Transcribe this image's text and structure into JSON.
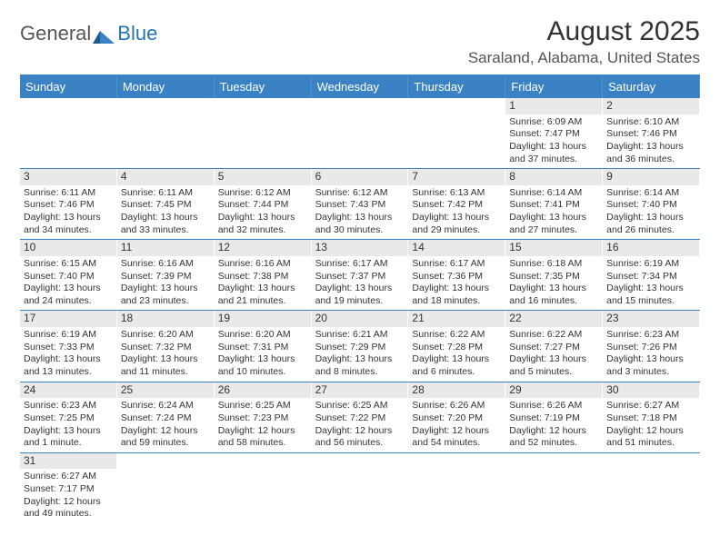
{
  "logo": {
    "word1": "General",
    "word2": "Blue"
  },
  "title": "August 2025",
  "location": "Saraland, Alabama, United States",
  "colors": {
    "header_bg": "#3b82c4",
    "header_text": "#ffffff",
    "daynum_bg": "#e9e9e9",
    "rule": "#3b82c4",
    "text": "#333333"
  },
  "fonts": {
    "title_size_pt": 22,
    "location_size_pt": 13,
    "dayheader_size_pt": 10,
    "body_size_pt": 8
  },
  "day_names": [
    "Sunday",
    "Monday",
    "Tuesday",
    "Wednesday",
    "Thursday",
    "Friday",
    "Saturday"
  ],
  "weeks": [
    [
      null,
      null,
      null,
      null,
      null,
      {
        "n": "1",
        "sunrise": "Sunrise: 6:09 AM",
        "sunset": "Sunset: 7:47 PM",
        "daylight": "Daylight: 13 hours and 37 minutes."
      },
      {
        "n": "2",
        "sunrise": "Sunrise: 6:10 AM",
        "sunset": "Sunset: 7:46 PM",
        "daylight": "Daylight: 13 hours and 36 minutes."
      }
    ],
    [
      {
        "n": "3",
        "sunrise": "Sunrise: 6:11 AM",
        "sunset": "Sunset: 7:46 PM",
        "daylight": "Daylight: 13 hours and 34 minutes."
      },
      {
        "n": "4",
        "sunrise": "Sunrise: 6:11 AM",
        "sunset": "Sunset: 7:45 PM",
        "daylight": "Daylight: 13 hours and 33 minutes."
      },
      {
        "n": "5",
        "sunrise": "Sunrise: 6:12 AM",
        "sunset": "Sunset: 7:44 PM",
        "daylight": "Daylight: 13 hours and 32 minutes."
      },
      {
        "n": "6",
        "sunrise": "Sunrise: 6:12 AM",
        "sunset": "Sunset: 7:43 PM",
        "daylight": "Daylight: 13 hours and 30 minutes."
      },
      {
        "n": "7",
        "sunrise": "Sunrise: 6:13 AM",
        "sunset": "Sunset: 7:42 PM",
        "daylight": "Daylight: 13 hours and 29 minutes."
      },
      {
        "n": "8",
        "sunrise": "Sunrise: 6:14 AM",
        "sunset": "Sunset: 7:41 PM",
        "daylight": "Daylight: 13 hours and 27 minutes."
      },
      {
        "n": "9",
        "sunrise": "Sunrise: 6:14 AM",
        "sunset": "Sunset: 7:40 PM",
        "daylight": "Daylight: 13 hours and 26 minutes."
      }
    ],
    [
      {
        "n": "10",
        "sunrise": "Sunrise: 6:15 AM",
        "sunset": "Sunset: 7:40 PM",
        "daylight": "Daylight: 13 hours and 24 minutes."
      },
      {
        "n": "11",
        "sunrise": "Sunrise: 6:16 AM",
        "sunset": "Sunset: 7:39 PM",
        "daylight": "Daylight: 13 hours and 23 minutes."
      },
      {
        "n": "12",
        "sunrise": "Sunrise: 6:16 AM",
        "sunset": "Sunset: 7:38 PM",
        "daylight": "Daylight: 13 hours and 21 minutes."
      },
      {
        "n": "13",
        "sunrise": "Sunrise: 6:17 AM",
        "sunset": "Sunset: 7:37 PM",
        "daylight": "Daylight: 13 hours and 19 minutes."
      },
      {
        "n": "14",
        "sunrise": "Sunrise: 6:17 AM",
        "sunset": "Sunset: 7:36 PM",
        "daylight": "Daylight: 13 hours and 18 minutes."
      },
      {
        "n": "15",
        "sunrise": "Sunrise: 6:18 AM",
        "sunset": "Sunset: 7:35 PM",
        "daylight": "Daylight: 13 hours and 16 minutes."
      },
      {
        "n": "16",
        "sunrise": "Sunrise: 6:19 AM",
        "sunset": "Sunset: 7:34 PM",
        "daylight": "Daylight: 13 hours and 15 minutes."
      }
    ],
    [
      {
        "n": "17",
        "sunrise": "Sunrise: 6:19 AM",
        "sunset": "Sunset: 7:33 PM",
        "daylight": "Daylight: 13 hours and 13 minutes."
      },
      {
        "n": "18",
        "sunrise": "Sunrise: 6:20 AM",
        "sunset": "Sunset: 7:32 PM",
        "daylight": "Daylight: 13 hours and 11 minutes."
      },
      {
        "n": "19",
        "sunrise": "Sunrise: 6:20 AM",
        "sunset": "Sunset: 7:31 PM",
        "daylight": "Daylight: 13 hours and 10 minutes."
      },
      {
        "n": "20",
        "sunrise": "Sunrise: 6:21 AM",
        "sunset": "Sunset: 7:29 PM",
        "daylight": "Daylight: 13 hours and 8 minutes."
      },
      {
        "n": "21",
        "sunrise": "Sunrise: 6:22 AM",
        "sunset": "Sunset: 7:28 PM",
        "daylight": "Daylight: 13 hours and 6 minutes."
      },
      {
        "n": "22",
        "sunrise": "Sunrise: 6:22 AM",
        "sunset": "Sunset: 7:27 PM",
        "daylight": "Daylight: 13 hours and 5 minutes."
      },
      {
        "n": "23",
        "sunrise": "Sunrise: 6:23 AM",
        "sunset": "Sunset: 7:26 PM",
        "daylight": "Daylight: 13 hours and 3 minutes."
      }
    ],
    [
      {
        "n": "24",
        "sunrise": "Sunrise: 6:23 AM",
        "sunset": "Sunset: 7:25 PM",
        "daylight": "Daylight: 13 hours and 1 minute."
      },
      {
        "n": "25",
        "sunrise": "Sunrise: 6:24 AM",
        "sunset": "Sunset: 7:24 PM",
        "daylight": "Daylight: 12 hours and 59 minutes."
      },
      {
        "n": "26",
        "sunrise": "Sunrise: 6:25 AM",
        "sunset": "Sunset: 7:23 PM",
        "daylight": "Daylight: 12 hours and 58 minutes."
      },
      {
        "n": "27",
        "sunrise": "Sunrise: 6:25 AM",
        "sunset": "Sunset: 7:22 PM",
        "daylight": "Daylight: 12 hours and 56 minutes."
      },
      {
        "n": "28",
        "sunrise": "Sunrise: 6:26 AM",
        "sunset": "Sunset: 7:20 PM",
        "daylight": "Daylight: 12 hours and 54 minutes."
      },
      {
        "n": "29",
        "sunrise": "Sunrise: 6:26 AM",
        "sunset": "Sunset: 7:19 PM",
        "daylight": "Daylight: 12 hours and 52 minutes."
      },
      {
        "n": "30",
        "sunrise": "Sunrise: 6:27 AM",
        "sunset": "Sunset: 7:18 PM",
        "daylight": "Daylight: 12 hours and 51 minutes."
      }
    ],
    [
      {
        "n": "31",
        "sunrise": "Sunrise: 6:27 AM",
        "sunset": "Sunset: 7:17 PM",
        "daylight": "Daylight: 12 hours and 49 minutes."
      },
      null,
      null,
      null,
      null,
      null,
      null
    ]
  ]
}
